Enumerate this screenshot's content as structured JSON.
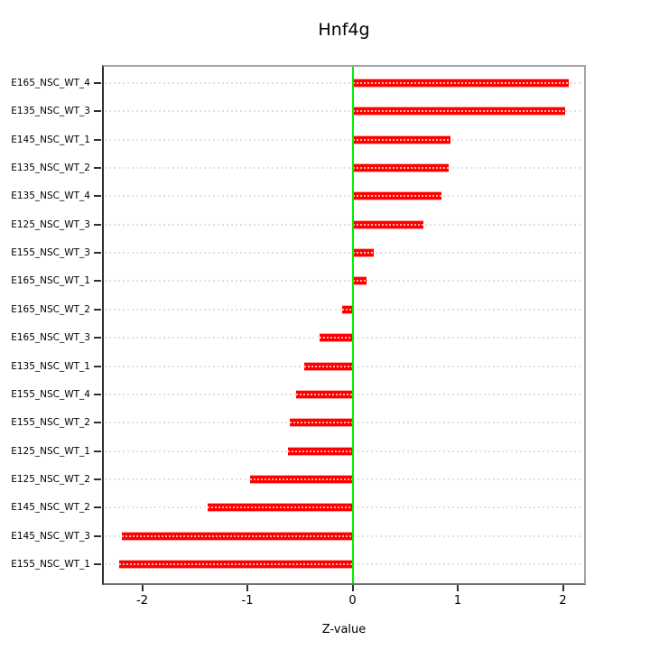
{
  "title": "Hnf4g",
  "xlabel": "Z-value",
  "colors": {
    "bar": "#ff0000",
    "bar_edge": "#ffa5a5",
    "zero_line": "#00ee00",
    "axis": "#2f2f2f",
    "box": "#a3a3a3",
    "grid": "#e0e0e0"
  },
  "chart_data": {
    "type": "bar",
    "orientation": "horizontal",
    "title": "Hnf4g",
    "xlabel": "Z-value",
    "ylabel": "",
    "categories": [
      "E165_NSC_WT_4",
      "E135_NSC_WT_3",
      "E145_NSC_WT_1",
      "E135_NSC_WT_2",
      "E135_NSC_WT_4",
      "E125_NSC_WT_3",
      "E155_NSC_WT_3",
      "E165_NSC_WT_1",
      "E165_NSC_WT_2",
      "E165_NSC_WT_3",
      "E135_NSC_WT_1",
      "E155_NSC_WT_4",
      "E155_NSC_WT_2",
      "E125_NSC_WT_1",
      "E125_NSC_WT_2",
      "E145_NSC_WT_2",
      "E145_NSC_WT_3",
      "E155_NSC_WT_1"
    ],
    "values": [
      2.05,
      2.02,
      0.93,
      0.91,
      0.84,
      0.67,
      0.2,
      0.13,
      -0.1,
      -0.32,
      -0.46,
      -0.54,
      -0.6,
      -0.62,
      -0.98,
      -1.38,
      -2.2,
      -2.22
    ],
    "xlim": [
      -2.37,
      2.2
    ],
    "xticks": [
      -2,
      -1,
      0,
      1,
      2
    ],
    "xtick_labels": [
      "-2",
      "-1",
      "0",
      "1",
      "2"
    ],
    "grid": "dotted horizontal line per category row",
    "zero_line_value": 0,
    "bar_color": "#ff0000",
    "legend": null
  }
}
